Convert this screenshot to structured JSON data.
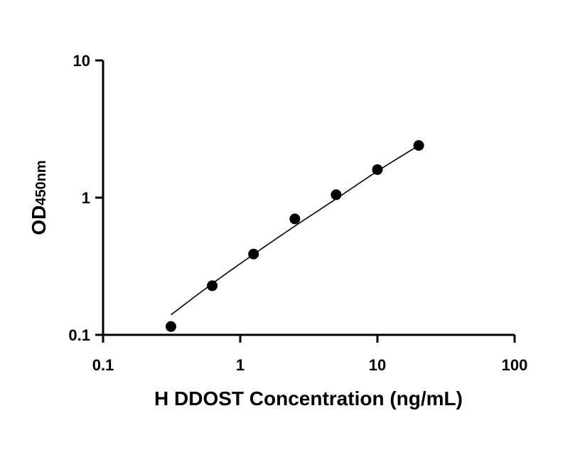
{
  "chart_data": {
    "type": "scatter",
    "xlabel": "H DDOST Concentration (ng/mL)",
    "ylabel_main": "OD",
    "ylabel_sub": "450nm",
    "xscale": "log",
    "yscale": "log",
    "xlim": [
      0.1,
      100
    ],
    "ylim": [
      0.1,
      10
    ],
    "xticks": [
      "0.1",
      "1",
      "10",
      "100"
    ],
    "yticks": [
      "0.1",
      "1",
      "10"
    ],
    "grid": false,
    "legend": "none",
    "series": [
      {
        "x": [
          0.3125,
          0.625,
          1.25,
          2.5,
          5,
          10,
          20
        ],
        "y": [
          0.115,
          0.228,
          0.388,
          0.7,
          1.05,
          1.6,
          2.4
        ]
      }
    ],
    "fit_curve": {
      "x": [
        0.3125,
        0.625,
        1.25,
        2.5,
        5,
        10,
        20
      ],
      "y": [
        0.14,
        0.236,
        0.386,
        0.62,
        0.98,
        1.56,
        2.4
      ]
    }
  }
}
